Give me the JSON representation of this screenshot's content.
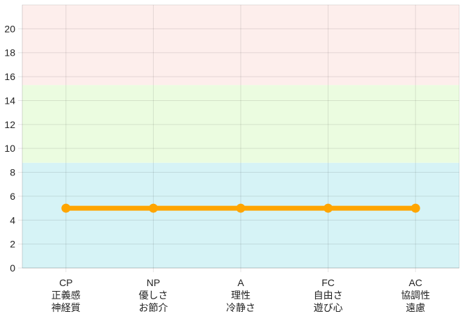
{
  "chart_data": {
    "type": "line",
    "categories": [
      [
        "CP",
        "正義感",
        "神経質"
      ],
      [
        "NP",
        "優しさ",
        "お節介"
      ],
      [
        "A",
        "理性",
        "冷静さ"
      ],
      [
        "FC",
        "自由さ",
        "遊び心"
      ],
      [
        "AC",
        "協調性",
        "遠慮"
      ]
    ],
    "series": [
      {
        "values": [
          5,
          5,
          5,
          5,
          5
        ],
        "color": "#FFA500"
      }
    ],
    "ylim": [
      0,
      22
    ],
    "yticks": [
      0,
      2,
      4,
      6,
      8,
      10,
      12,
      14,
      16,
      18,
      20
    ],
    "grid": true,
    "bands": [
      {
        "from": 0,
        "to": 8.8,
        "color": "#D6F3F6"
      },
      {
        "from": 8.8,
        "to": 15.3,
        "color": "#EBFCE0"
      },
      {
        "from": 15.3,
        "to": 22,
        "color": "#FDEEEC"
      }
    ]
  }
}
